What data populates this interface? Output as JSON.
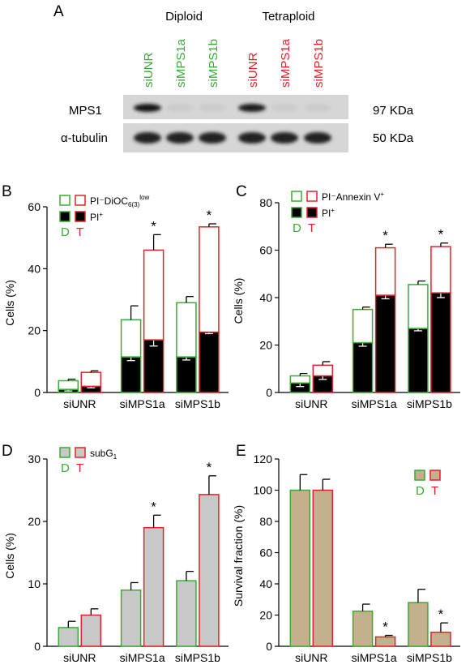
{
  "colors": {
    "diploid": "#3aaa35",
    "tetraploid": "#e4212b",
    "black": "#000000",
    "grey": "#c8c8c8",
    "tan": "#c5b08e",
    "white": "#ffffff"
  },
  "panel_a": {
    "letter": "A",
    "group_diploid": "Diploid",
    "group_tetraploid": "Tetraploid",
    "lanes": [
      {
        "label": "siUNR",
        "group": "diploid"
      },
      {
        "label": "siMPS1a",
        "group": "diploid"
      },
      {
        "label": "siMPS1b",
        "group": "diploid"
      },
      {
        "label": "siUNR",
        "group": "tetraploid"
      },
      {
        "label": "siMPS1a",
        "group": "tetraploid"
      },
      {
        "label": "siMPS1b",
        "group": "tetraploid"
      }
    ],
    "blots": [
      {
        "protein": "MPS1",
        "size": "97 KDa",
        "band_intensity": [
          0.95,
          0.06,
          0.06,
          0.92,
          0.06,
          0.06
        ]
      },
      {
        "protein": "α-tubulin",
        "size": "50 KDa",
        "band_intensity": [
          0.9,
          0.9,
          0.9,
          0.9,
          0.9,
          0.9
        ]
      }
    ]
  },
  "chart_data": [
    {
      "panel": "B",
      "type": "bar",
      "stacked": true,
      "categories": [
        "siUNR",
        "siMPS1a",
        "siMPS1b"
      ],
      "groups": [
        "D",
        "T"
      ],
      "ylabel": "Cells (%)",
      "ylim": [
        0,
        60
      ],
      "yticks": [
        0,
        20,
        40,
        60
      ],
      "series": [
        {
          "name": "PI⁺",
          "fill": "black",
          "D": [
            1,
            11.5,
            11.5
          ],
          "T": [
            2,
            17,
            19.5
          ],
          "err_D": [
            0.5,
            1.2,
            1
          ],
          "err_T": [
            0.5,
            2,
            0.5
          ]
        },
        {
          "name": "PI⁻DiOC₆₍₃₎ˡᵒʷ",
          "fill": "white",
          "D": [
            2.8,
            12,
            17.5
          ],
          "T": [
            4.5,
            29,
            34
          ],
          "err_D": [
            0.5,
            4.5,
            2
          ],
          "err_T": [
            0.5,
            5,
            1
          ]
        }
      ],
      "significant": {
        "T": [
          false,
          true,
          true
        ]
      },
      "legend": {
        "placement": "top-left",
        "d_label": "D",
        "t_label": "T",
        "entries": [
          {
            "label": "PI⁻DiOC",
            "sub": "6(3)",
            "sup": "low",
            "fill": "white"
          },
          {
            "label": "PI",
            "sup": "+",
            "fill": "black"
          }
        ]
      }
    },
    {
      "panel": "C",
      "type": "bar",
      "stacked": true,
      "categories": [
        "siUNR",
        "siMPS1a",
        "siMPS1b"
      ],
      "groups": [
        "D",
        "T"
      ],
      "ylabel": "Cells (%)",
      "ylim": [
        0,
        80
      ],
      "yticks": [
        0,
        20,
        40,
        60,
        80
      ],
      "series": [
        {
          "name": "PI⁺",
          "fill": "black",
          "D": [
            4,
            21,
            27
          ],
          "T": [
            7,
            41,
            42
          ],
          "err_D": [
            1.5,
            1.5,
            1
          ],
          "err_T": [
            1.5,
            1.5,
            2
          ]
        },
        {
          "name": "PI⁻Annexin V⁺",
          "fill": "white",
          "D": [
            3,
            14,
            18.5
          ],
          "T": [
            4.5,
            20,
            19.5
          ],
          "err_D": [
            1,
            1,
            1.5
          ],
          "err_T": [
            1.5,
            1.5,
            1.5
          ]
        }
      ],
      "significant": {
        "T": [
          false,
          true,
          true
        ]
      },
      "legend": {
        "placement": "top-left",
        "d_label": "D",
        "t_label": "T",
        "entries": [
          {
            "label": "PI⁻Annexin V",
            "sup": "+",
            "fill": "white"
          },
          {
            "label": "PI",
            "sup": "+",
            "fill": "black"
          }
        ]
      }
    },
    {
      "panel": "D",
      "type": "bar",
      "stacked": false,
      "categories": [
        "siUNR",
        "siMPS1a",
        "siMPS1b"
      ],
      "groups": [
        "D",
        "T"
      ],
      "ylabel": "Cells (%)",
      "ylim": [
        0,
        30
      ],
      "yticks": [
        0,
        10,
        20,
        30
      ],
      "series": [
        {
          "name": "subG₁",
          "fill": "grey",
          "D": [
            3,
            9,
            10.5
          ],
          "T": [
            5,
            19,
            24.3
          ],
          "err_D": [
            1,
            1.2,
            1.5
          ],
          "err_T": [
            1,
            2,
            3
          ]
        }
      ],
      "significant": {
        "T": [
          false,
          true,
          true
        ]
      },
      "legend": {
        "placement": "top-left",
        "d_label": "D",
        "t_label": "T",
        "entries": [
          {
            "label": "subG",
            "sub": "1",
            "fill": "grey"
          }
        ]
      }
    },
    {
      "panel": "E",
      "type": "bar",
      "stacked": false,
      "categories": [
        "siUNR",
        "siMPS1a",
        "siMPS1b"
      ],
      "groups": [
        "D",
        "T"
      ],
      "ylabel": "Survival fraction (%)",
      "ylim": [
        0,
        120
      ],
      "yticks": [
        0,
        20,
        40,
        60,
        80,
        100,
        120
      ],
      "series": [
        {
          "name": "",
          "fill": "tan",
          "D": [
            100,
            22.5,
            28
          ],
          "T": [
            100,
            6,
            9
          ],
          "err_D": [
            10,
            4.5,
            8.5
          ],
          "err_T": [
            7,
            1,
            6
          ]
        }
      ],
      "significant": {
        "T": [
          false,
          true,
          true
        ]
      },
      "legend": {
        "placement": "top-right",
        "d_label": "D",
        "t_label": "T",
        "entries": []
      }
    }
  ]
}
